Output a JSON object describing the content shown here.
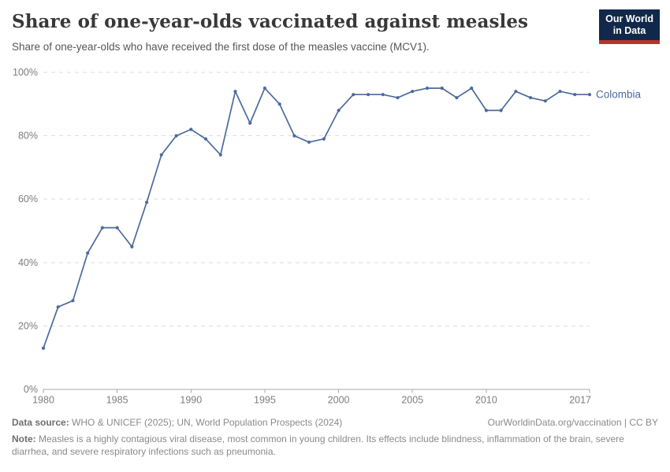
{
  "header": {
    "title": "Share of one-year-olds vaccinated against measles",
    "subtitle": "Share of one-year-olds who have received the first dose of the measles vaccine (MCV1).",
    "logo": {
      "line1": "Our World",
      "line2": "in Data",
      "bg_color": "#12284B",
      "accent_color": "#B5342C"
    }
  },
  "chart_data": {
    "type": "line",
    "title": "Share of one-year-olds vaccinated against measles",
    "xlabel": "",
    "ylabel": "",
    "xlim": [
      1980,
      2017
    ],
    "ylim": [
      0,
      100
    ],
    "grid": "horizontal-dashed",
    "legend_position": "end-of-line-label",
    "x": [
      1980,
      1981,
      1982,
      1983,
      1984,
      1985,
      1986,
      1987,
      1988,
      1989,
      1990,
      1991,
      1992,
      1993,
      1994,
      1995,
      1996,
      1997,
      1998,
      1999,
      2000,
      2001,
      2002,
      2003,
      2004,
      2005,
      2006,
      2007,
      2008,
      2009,
      2010,
      2011,
      2012,
      2013,
      2014,
      2015,
      2016,
      2017
    ],
    "series": [
      {
        "name": "Colombia",
        "color": "#4C6A9C",
        "values": [
          13,
          26,
          28,
          43,
          51,
          51,
          45,
          59,
          74,
          80,
          82,
          79,
          74,
          94,
          84,
          95,
          90,
          80,
          78,
          79,
          88,
          93,
          93,
          93,
          92,
          94,
          95,
          95,
          92,
          95,
          88,
          88,
          94,
          92,
          91,
          94,
          93,
          93
        ]
      }
    ],
    "x_ticks": [
      1980,
      1985,
      1990,
      1995,
      2000,
      2005,
      2010,
      2017
    ],
    "y_ticks": [
      {
        "value": 0,
        "label": "0%"
      },
      {
        "value": 20,
        "label": "20%"
      },
      {
        "value": 40,
        "label": "40%"
      },
      {
        "value": 60,
        "label": "60%"
      },
      {
        "value": 80,
        "label": "80%"
      },
      {
        "value": 100,
        "label": "100%"
      }
    ],
    "colors": {
      "gridline": "#dedede",
      "axis": "#a8a8a8",
      "tick_label": "#7d7d7d"
    }
  },
  "footer": {
    "datasource_label": "Data source:",
    "datasource_text": " WHO & UNICEF (2025); UN, World Population Prospects (2024)",
    "link_text": "OurWorldinData.org/vaccination | CC BY",
    "note_label": "Note:",
    "note_text": " Measles is a highly contagious viral disease, most common in young children. Its effects include blindness, inflammation of the brain, severe diarrhea, and severe respiratory infections such as pneumonia."
  }
}
